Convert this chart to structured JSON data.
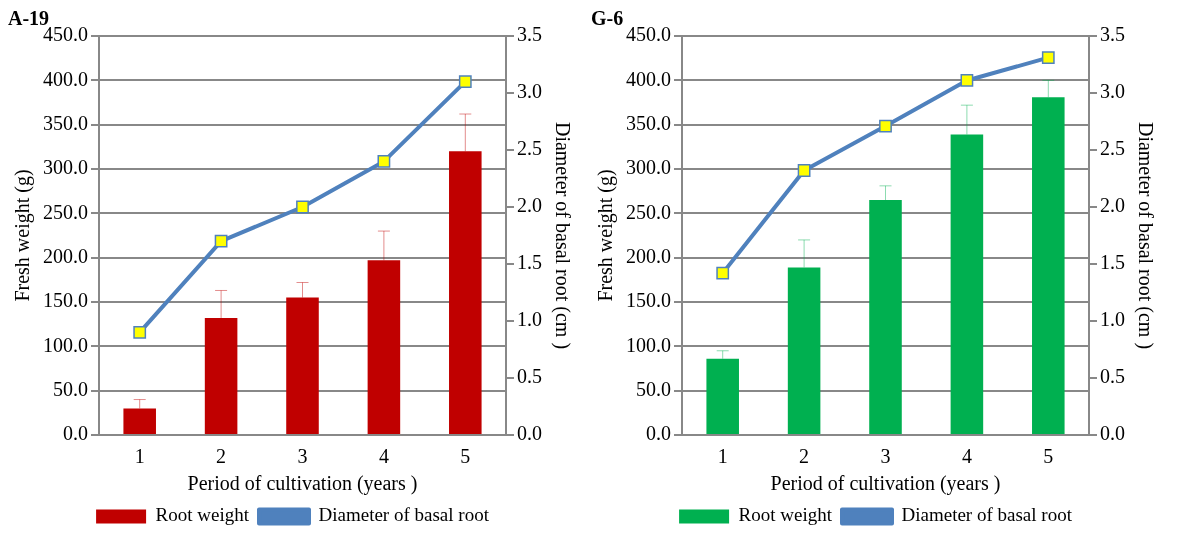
{
  "chart_data": [
    {
      "type": "bar",
      "title": "A-19",
      "xlabel": "Period of cultivation (years )",
      "ylabel": "Fresh weight (g)",
      "y2label": "Diameter of basal root (cm )",
      "categories": [
        "1",
        "2",
        "3",
        "4",
        "5"
      ],
      "series": [
        {
          "name": "Root weight",
          "color": "#c00000",
          "values": [
            30,
            132,
            155,
            197,
            320
          ],
          "errors": [
            [
              30,
              40
            ],
            [
              132,
              163
            ],
            [
              155,
              172
            ],
            [
              197,
              230
            ],
            [
              320,
              362
            ]
          ]
        },
        {
          "name": "Diameter of basal root",
          "type": "line",
          "axis": "y2",
          "color": "#4f81bd",
          "marker": "square",
          "values": [
            0.9,
            1.7,
            2.0,
            2.4,
            3.1
          ]
        }
      ],
      "ylim": [
        0,
        450
      ],
      "yticks": [
        {
          "value": 0,
          "label": "0.0"
        },
        {
          "value": 50,
          "label": "50.0"
        },
        {
          "value": 100,
          "label": "100.0"
        },
        {
          "value": 150,
          "label": "150.0"
        },
        {
          "value": 200,
          "label": "200.0"
        },
        {
          "value": 250,
          "label": "250.0"
        },
        {
          "value": 300,
          "label": "300.0"
        },
        {
          "value": 350,
          "label": "350.0"
        },
        {
          "value": 400,
          "label": "400.0"
        },
        {
          "value": 450,
          "label": "450.0"
        }
      ],
      "y2lim": [
        0,
        3.5
      ],
      "y2ticks": [
        {
          "value": 0,
          "label": "0.0"
        },
        {
          "value": 0.5,
          "label": "0.5"
        },
        {
          "value": 1,
          "label": "1.0"
        },
        {
          "value": 1.5,
          "label": "1.5"
        },
        {
          "value": 2,
          "label": "2.0"
        },
        {
          "value": 2.5,
          "label": "2.5"
        },
        {
          "value": 3,
          "label": "3.0"
        },
        {
          "value": 3.5,
          "label": "3.5"
        }
      ],
      "grid": "y",
      "legend": "bottom"
    },
    {
      "type": "bar",
      "title": "G-6",
      "xlabel": "Period of cultivation (years )",
      "ylabel": "Fresh weight (g)",
      "y2label": "Diameter of basal root (cm )",
      "categories": [
        "1",
        "2",
        "3",
        "4",
        "5"
      ],
      "series": [
        {
          "name": "Root weight",
          "color": "#00b050",
          "values": [
            86,
            189,
            265,
            339,
            381
          ],
          "errors": [
            [
              86,
              95
            ],
            [
              189,
              220
            ],
            [
              265,
              281
            ],
            [
              339,
              372
            ],
            [
              381,
              400
            ]
          ]
        },
        {
          "name": "Diameter of basal root",
          "type": "line",
          "axis": "y2",
          "color": "#4f81bd",
          "marker": "square",
          "values": [
            1.42,
            2.32,
            2.71,
            3.11,
            3.31
          ]
        }
      ],
      "ylim": [
        0,
        450
      ],
      "yticks": [
        {
          "value": 0,
          "label": "0.0"
        },
        {
          "value": 50,
          "label": "50.0"
        },
        {
          "value": 100,
          "label": "100.0"
        },
        {
          "value": 150,
          "label": "150.0"
        },
        {
          "value": 200,
          "label": "200.0"
        },
        {
          "value": 250,
          "label": "250.0"
        },
        {
          "value": 300,
          "label": "300.0"
        },
        {
          "value": 350,
          "label": "350.0"
        },
        {
          "value": 400,
          "label": "400.0"
        },
        {
          "value": 450,
          "label": "450.0"
        }
      ],
      "y2lim": [
        0,
        3.5
      ],
      "y2ticks": [
        {
          "value": 0,
          "label": "0.0"
        },
        {
          "value": 0.5,
          "label": "0.5"
        },
        {
          "value": 1,
          "label": "1.0"
        },
        {
          "value": 1.5,
          "label": "1.5"
        },
        {
          "value": 2,
          "label": "2.0"
        },
        {
          "value": 2.5,
          "label": "2.5"
        },
        {
          "value": 3,
          "label": "3.0"
        },
        {
          "value": 3.5,
          "label": "3.5"
        }
      ],
      "grid": "y",
      "legend": "bottom"
    }
  ]
}
